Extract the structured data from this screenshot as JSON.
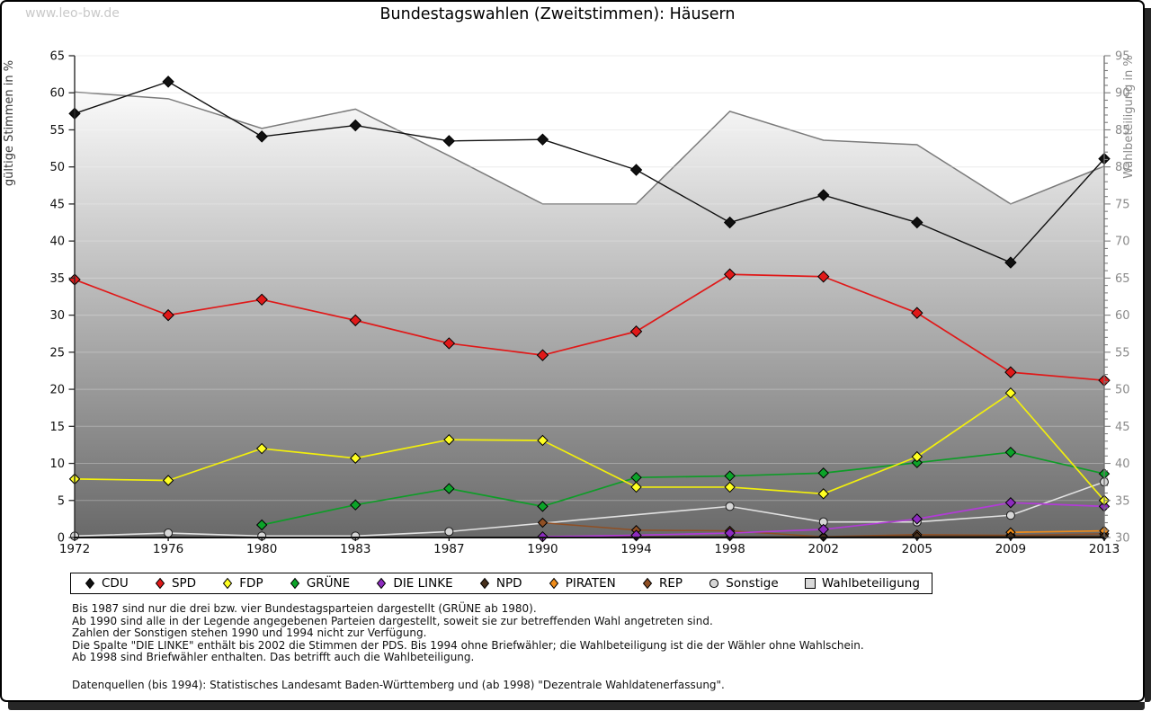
{
  "watermark": "www.leo-bw.de",
  "title": "Bundestagswahlen (Zweitstimmen): Häusern",
  "chart_data": {
    "type": "line",
    "x": [
      1972,
      1976,
      1980,
      1983,
      1987,
      1990,
      1994,
      1998,
      2002,
      2005,
      2009,
      2013
    ],
    "y_left": {
      "label": "gültige Stimmen in %",
      "min": 0,
      "max": 65,
      "tick_step": 5
    },
    "y_right": {
      "label": "Wahlbeteiligung in %",
      "min": 30,
      "max": 95,
      "tick_step": 5,
      "minor_step": 1
    },
    "grid": true,
    "legend_position": "bottom",
    "series": [
      {
        "name": "CDU",
        "color": "#111111",
        "marker": "diamond",
        "marker_size": 6,
        "line_width": 1.4,
        "values": [
          57.2,
          61.5,
          54.1,
          55.6,
          53.5,
          53.7,
          49.6,
          42.5,
          46.2,
          42.5,
          37.1,
          51.1
        ]
      },
      {
        "name": "SPD",
        "color": "#e01919",
        "marker": "diamond",
        "marker_size": 6,
        "line_width": 1.7,
        "values": [
          34.8,
          30.0,
          32.1,
          29.3,
          26.2,
          24.6,
          27.8,
          35.5,
          35.2,
          30.3,
          22.3,
          21.2
        ]
      },
      {
        "name": "FDP",
        "color": "#f2ef0c",
        "marker": "diamond",
        "marker_size": 5.5,
        "line_width": 1.7,
        "marker_color": "#ffff22",
        "values": [
          7.9,
          7.7,
          12.0,
          10.7,
          13.2,
          13.1,
          6.8,
          6.8,
          5.9,
          10.9,
          19.5,
          5.0
        ]
      },
      {
        "name": "GRÜNE",
        "color": "#0f9c28",
        "marker": "diamond",
        "marker_size": 5.5,
        "line_width": 1.7,
        "marker_color": "#0ca329",
        "values": [
          null,
          null,
          1.7,
          4.4,
          6.6,
          4.2,
          8.1,
          8.3,
          8.7,
          10.1,
          11.5,
          8.6
        ]
      },
      {
        "name": "DIE LINKE",
        "color": "#b13cd6",
        "marker": "diamond",
        "marker_size": 5.5,
        "line_width": 1.7,
        "marker_color": "#8d2bbf",
        "values": [
          null,
          null,
          null,
          null,
          null,
          0.1,
          0.3,
          0.6,
          1.1,
          2.5,
          4.7,
          4.2
        ]
      },
      {
        "name": "NPD",
        "color": "#47301c",
        "marker": "diamond",
        "marker_size": 4.5,
        "line_width": 1.3,
        "values": [
          null,
          null,
          null,
          null,
          null,
          0.1,
          0.1,
          0.1,
          0.1,
          0.2,
          0.2,
          0.2
        ]
      },
      {
        "name": "PIRATEN",
        "color": "#ef8c1a",
        "marker": "diamond",
        "marker_size": 5,
        "line_width": 1.7,
        "values": [
          null,
          null,
          null,
          null,
          null,
          null,
          null,
          null,
          null,
          null,
          0.7,
          0.9
        ]
      },
      {
        "name": "REP",
        "color": "#8f4f24",
        "marker": "diamond",
        "marker_size": 5,
        "line_width": 1.5,
        "values": [
          null,
          null,
          null,
          null,
          null,
          2.0,
          1.0,
          0.9,
          0.1,
          0.4,
          0.3,
          0.5
        ]
      },
      {
        "name": "Sonstige",
        "color": "#e2e2e2",
        "marker": "circle",
        "marker_size": 4.5,
        "line_width": 1.6,
        "marker_color": "#d6d6d6",
        "values": [
          0.2,
          0.6,
          0.2,
          0.2,
          0.8,
          null,
          null,
          4.2,
          2.1,
          2.1,
          3.0,
          7.5
        ]
      }
    ],
    "area_series": {
      "name": "Wahlbeteiligung",
      "axis": "right",
      "stroke": "#7b7b7b",
      "fill_top": "#fafafa",
      "fill_bottom": "#696969",
      "values": [
        90.1,
        89.2,
        85.2,
        87.8,
        81.5,
        75.0,
        75.0,
        87.5,
        83.6,
        83.0,
        75.0,
        80.1
      ]
    }
  },
  "footnotes": [
    "Bis 1987 sind nur die drei bzw. vier Bundestagsparteien dargestellt (GRÜNE ab 1980).",
    "Ab 1990 sind alle in der Legende angegebenen Parteien dargestellt, soweit sie zur betreffenden Wahl angetreten sind.",
    "Zahlen der Sonstigen stehen 1990 und 1994 nicht zur Verfügung.",
    "Die Spalte \"DIE LINKE\" enthält bis 2002 die Stimmen der PDS. Bis 1994 ohne Briefwähler; die Wahlbeteiligung ist die der Wähler ohne Wahlschein.",
    "Ab 1998 sind Briefwähler enthalten. Das betrifft auch die Wahlbeteiligung."
  ],
  "source_line": "Datenquellen (bis 1994): Statistisches Landesamt Baden-Württemberg und (ab 1998) \"Dezentrale Wahldatenerfassung\"."
}
